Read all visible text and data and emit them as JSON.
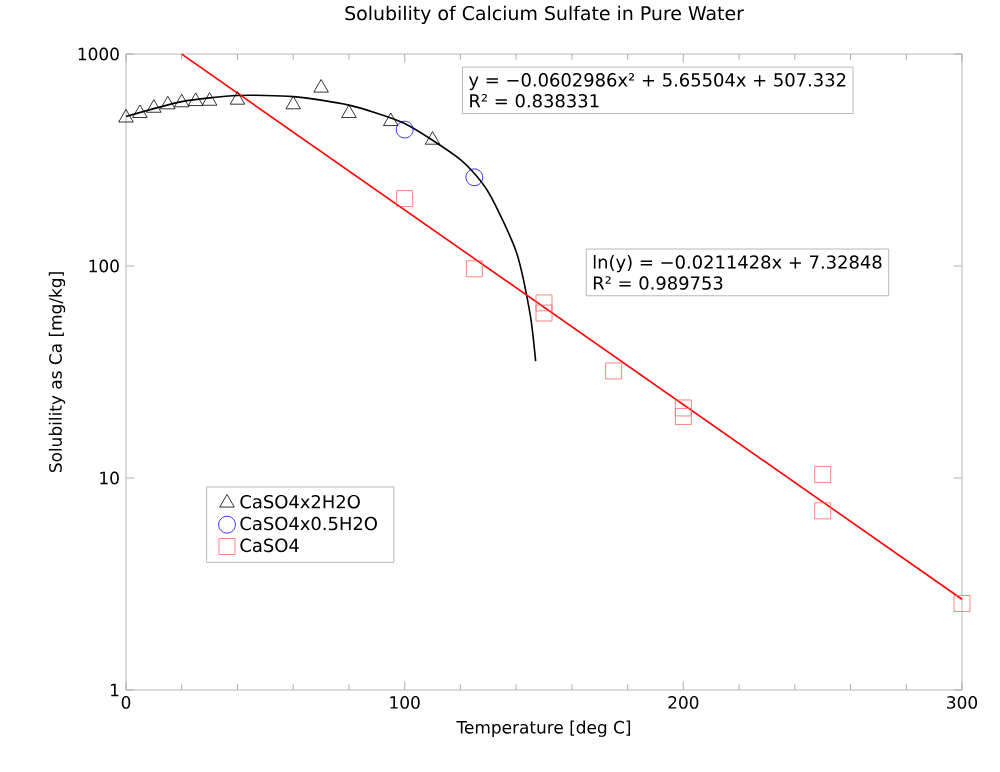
{
  "chart_data": {
    "type": "scatter",
    "title": "Solubility of Calcium Sulfate in Pure Water",
    "xlabel": "Temperature [deg C]",
    "ylabel": "Solubility as Ca [mg/kg]",
    "xlim": [
      0,
      300
    ],
    "xticks": [
      0,
      100,
      200,
      300
    ],
    "ylim": [
      1,
      1000
    ],
    "yticks": [
      1,
      10,
      100,
      1000
    ],
    "log": "y",
    "grid": false,
    "legend": "bottom left",
    "series": [
      {
        "name": "CaSO4x2H2O",
        "color": "#000000",
        "marker": "triangle",
        "x": [
          0,
          5,
          10,
          15,
          20,
          25,
          30,
          40,
          60,
          70,
          80,
          95,
          110
        ],
        "values": [
          500,
          525,
          556,
          577,
          590,
          598,
          600,
          607,
          577,
          692,
          525,
          481,
          393
        ]
      },
      {
        "name": "CaSO4x0.5H2O",
        "color": "#0000ff",
        "marker": "circle",
        "x": [
          100,
          125
        ],
        "values": [
          440,
          262
        ]
      },
      {
        "name": "CaSO4",
        "color": "#ff6666",
        "marker": "square",
        "x": [
          100,
          125,
          150,
          150,
          175,
          200,
          200,
          250,
          250,
          300
        ],
        "values": [
          208,
          97,
          67,
          60,
          32,
          21.4,
          19.5,
          10.4,
          7.0,
          2.56
        ]
      },
      {
        "type": "line",
        "color": "#000000",
        "marker": "none",
        "line_style": "solid",
        "x": [
          0,
          20,
          40,
          60,
          80,
          100,
          120,
          130,
          140,
          145,
          147
        ],
        "values": [
          507.3,
          596.3,
          637.1,
          629.6,
          573.8,
          469.8,
          317.6,
          223.4,
          117.2,
          59.5,
          35.6
        ]
      },
      {
        "type": "line",
        "color": "#ff0000",
        "marker": "none",
        "line_style": "solid",
        "x": [
          20,
          300
        ],
        "values": [
          998,
          2.68
        ]
      }
    ],
    "annotations": [
      "y = −0.0602986x² + 5.65504x + 507.332",
      "R² = 0.838331",
      "ln(y) = −0.0211428x + 7.32848",
      "R² = 0.989753"
    ]
  }
}
